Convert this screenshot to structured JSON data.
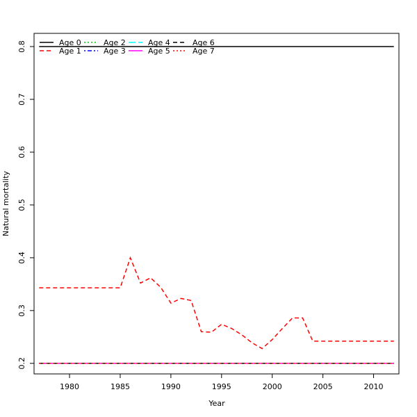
{
  "chart_data": {
    "type": "line",
    "title": "",
    "xlabel": "Year",
    "ylabel": "Natural mortality",
    "xlim": [
      1976.5,
      2012.5
    ],
    "ylim": [
      0.18,
      0.825
    ],
    "x_ticks": [
      1980,
      1985,
      1990,
      1995,
      2000,
      2005,
      2010
    ],
    "x_tick_labels": [
      "1980",
      "1985",
      "1990",
      "1995",
      "2000",
      "2005",
      "2010"
    ],
    "y_ticks": [
      0.2,
      0.3,
      0.4,
      0.5,
      0.6,
      0.7,
      0.8
    ],
    "y_tick_labels": [
      "0.2",
      "0.3",
      "0.4",
      "0.5",
      "0.6",
      "0.7",
      "0.8"
    ],
    "grid": false,
    "legend_position": "top-left",
    "x": [
      1977,
      1978,
      1979,
      1980,
      1981,
      1982,
      1983,
      1984,
      1985,
      1986,
      1987,
      1988,
      1989,
      1990,
      1991,
      1992,
      1993,
      1994,
      1995,
      1996,
      1997,
      1998,
      1999,
      2000,
      2001,
      2002,
      2003,
      2004,
      2005,
      2006,
      2007,
      2008,
      2009,
      2010,
      2011,
      2012
    ],
    "series": [
      {
        "name": "Age 0",
        "color": "#000000",
        "dash": "solid",
        "values": [
          0.8,
          0.8,
          0.8,
          0.8,
          0.8,
          0.8,
          0.8,
          0.8,
          0.8,
          0.8,
          0.8,
          0.8,
          0.8,
          0.8,
          0.8,
          0.8,
          0.8,
          0.8,
          0.8,
          0.8,
          0.8,
          0.8,
          0.8,
          0.8,
          0.8,
          0.8,
          0.8,
          0.8,
          0.8,
          0.8,
          0.8,
          0.8,
          0.8,
          0.8,
          0.8,
          0.8
        ]
      },
      {
        "name": "Age 1",
        "color": "#ff0000",
        "dash": "dashed",
        "values": [
          0.343,
          0.343,
          0.343,
          0.343,
          0.343,
          0.343,
          0.343,
          0.343,
          0.343,
          0.4,
          0.352,
          0.362,
          0.344,
          0.314,
          0.323,
          0.319,
          0.26,
          0.259,
          0.274,
          0.266,
          0.254,
          0.239,
          0.228,
          0.245,
          0.266,
          0.286,
          0.286,
          0.242,
          0.242,
          0.242,
          0.242,
          0.242,
          0.242,
          0.242,
          0.242,
          0.242
        ]
      },
      {
        "name": "Age 2",
        "color": "#00cd00",
        "dash": "dotted",
        "values": [
          0.2,
          0.2,
          0.2,
          0.2,
          0.2,
          0.2,
          0.2,
          0.2,
          0.2,
          0.2,
          0.2,
          0.2,
          0.2,
          0.2,
          0.2,
          0.2,
          0.2,
          0.2,
          0.2,
          0.2,
          0.2,
          0.2,
          0.2,
          0.2,
          0.2,
          0.2,
          0.2,
          0.2,
          0.2,
          0.2,
          0.2,
          0.2,
          0.2,
          0.2,
          0.2,
          0.2
        ]
      },
      {
        "name": "Age 3",
        "color": "#0000ff",
        "dash": "dotdash",
        "values": [
          0.2,
          0.2,
          0.2,
          0.2,
          0.2,
          0.2,
          0.2,
          0.2,
          0.2,
          0.2,
          0.2,
          0.2,
          0.2,
          0.2,
          0.2,
          0.2,
          0.2,
          0.2,
          0.2,
          0.2,
          0.2,
          0.2,
          0.2,
          0.2,
          0.2,
          0.2,
          0.2,
          0.2,
          0.2,
          0.2,
          0.2,
          0.2,
          0.2,
          0.2,
          0.2,
          0.2
        ]
      },
      {
        "name": "Age 4",
        "color": "#00ffff",
        "dash": "longdash",
        "values": [
          0.2,
          0.2,
          0.2,
          0.2,
          0.2,
          0.2,
          0.2,
          0.2,
          0.2,
          0.2,
          0.2,
          0.2,
          0.2,
          0.2,
          0.2,
          0.2,
          0.2,
          0.2,
          0.2,
          0.2,
          0.2,
          0.2,
          0.2,
          0.2,
          0.2,
          0.2,
          0.2,
          0.2,
          0.2,
          0.2,
          0.2,
          0.2,
          0.2,
          0.2,
          0.2,
          0.2
        ]
      },
      {
        "name": "Age 5",
        "color": "#ff00ff",
        "dash": "solid",
        "values": [
          0.2,
          0.2,
          0.2,
          0.2,
          0.2,
          0.2,
          0.2,
          0.2,
          0.2,
          0.2,
          0.2,
          0.2,
          0.2,
          0.2,
          0.2,
          0.2,
          0.2,
          0.2,
          0.2,
          0.2,
          0.2,
          0.2,
          0.2,
          0.2,
          0.2,
          0.2,
          0.2,
          0.2,
          0.2,
          0.2,
          0.2,
          0.2,
          0.2,
          0.2,
          0.2,
          0.2
        ]
      },
      {
        "name": "Age 6",
        "color": "#000000",
        "dash": "dashed",
        "values": [
          0.2,
          0.2,
          0.2,
          0.2,
          0.2,
          0.2,
          0.2,
          0.2,
          0.2,
          0.2,
          0.2,
          0.2,
          0.2,
          0.2,
          0.2,
          0.2,
          0.2,
          0.2,
          0.2,
          0.2,
          0.2,
          0.2,
          0.2,
          0.2,
          0.2,
          0.2,
          0.2,
          0.2,
          0.2,
          0.2,
          0.2,
          0.2,
          0.2,
          0.2,
          0.2,
          0.2
        ]
      },
      {
        "name": "Age 7",
        "color": "#ff0000",
        "dash": "dotted",
        "values": [
          0.2,
          0.2,
          0.2,
          0.2,
          0.2,
          0.2,
          0.2,
          0.2,
          0.2,
          0.2,
          0.2,
          0.2,
          0.2,
          0.2,
          0.2,
          0.2,
          0.2,
          0.2,
          0.2,
          0.2,
          0.2,
          0.2,
          0.2,
          0.2,
          0.2,
          0.2,
          0.2,
          0.2,
          0.2,
          0.2,
          0.2,
          0.2,
          0.2,
          0.2,
          0.2,
          0.2
        ]
      }
    ]
  }
}
